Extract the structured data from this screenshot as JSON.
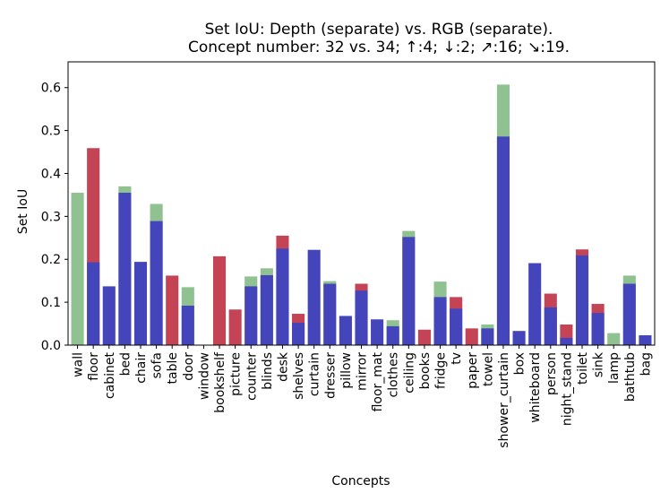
{
  "chart_data": {
    "type": "bar",
    "title_lines": [
      "Set IoU: Depth (separate) vs. RGB (separate).",
      "Concept number: 32 vs. 34;  ↑:4;  ↓:2;  ↗:16;  ↘:19."
    ],
    "xlabel": "Concepts",
    "ylabel": "Set IoU",
    "ylim": [
      0,
      0.66
    ],
    "yticks": [
      "0.0",
      "0.1",
      "0.2",
      "0.3",
      "0.4",
      "0.5",
      "0.6"
    ],
    "categories": [
      "wall",
      "floor",
      "cabinet",
      "bed",
      "chair",
      "sofa",
      "table",
      "door",
      "window",
      "bookshelf",
      "picture",
      "counter",
      "blinds",
      "desk",
      "shelves",
      "curtain",
      "dresser",
      "pillow",
      "mirror",
      "floor_mat",
      "clothes",
      "ceiling",
      "books",
      "fridge",
      "tv",
      "paper",
      "towel",
      "shower_curtain",
      "box",
      "whiteboard",
      "person",
      "night_stand",
      "toilet",
      "sink",
      "lamp",
      "bathtub",
      "bag"
    ],
    "series": [
      {
        "color": "#4444bb",
        "values": [
          0,
          0.193,
          0.137,
          0.355,
          0.194,
          0.289,
          0,
          0.092,
          0,
          0,
          0,
          0.137,
          0.163,
          0.225,
          0.052,
          0.222,
          0.143,
          0.068,
          0.127,
          0.06,
          0.044,
          0.252,
          0,
          0.112,
          0.085,
          0,
          0.039,
          0.486,
          0.033,
          0.191,
          0.088,
          0.017,
          0.209,
          0.075,
          0,
          0.143,
          0.023
        ]
      },
      {
        "color": "#c44455",
        "values": [
          0,
          0.459,
          0,
          0,
          0,
          0,
          0.162,
          0,
          0,
          0.207,
          0.083,
          0,
          0,
          0.255,
          0.073,
          0,
          0,
          0,
          0.143,
          0,
          0,
          0,
          0.036,
          0,
          0.112,
          0.039,
          0,
          0,
          0,
          0,
          0.12,
          0.048,
          0.223,
          0.096,
          0,
          0,
          0
        ]
      },
      {
        "color": "#8fc290",
        "values": [
          0.355,
          0,
          0,
          0.37,
          0,
          0.329,
          0,
          0.135,
          0,
          0,
          0,
          0.16,
          0.179,
          0,
          0,
          0,
          0.149,
          0,
          0,
          0,
          0.058,
          0.266,
          0,
          0.148,
          0,
          0,
          0.048,
          0.607,
          0,
          0,
          0,
          0,
          0,
          0,
          0.028,
          0.162,
          0
        ]
      }
    ],
    "grid": false,
    "legend": "none"
  }
}
